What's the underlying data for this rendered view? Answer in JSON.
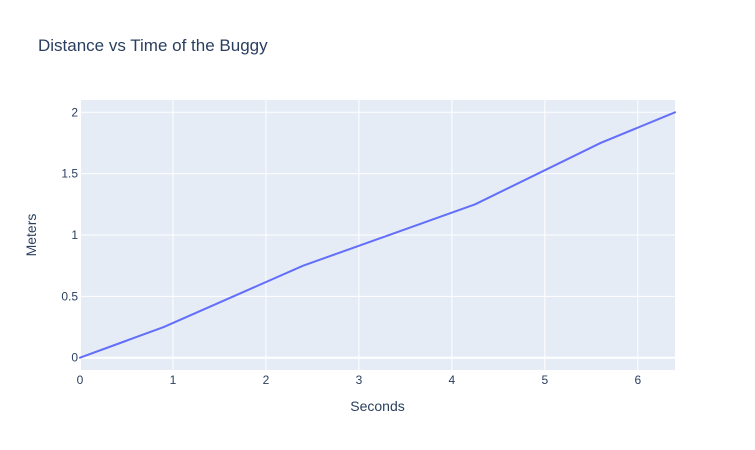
{
  "chart_data": {
    "type": "line",
    "title": "Distance vs Time of the Buggy",
    "xlabel": "Seconds",
    "ylabel": "Meters",
    "xlim": [
      0,
      6.4
    ],
    "ylim": [
      -0.1,
      2.1
    ],
    "xticks": [
      0,
      1,
      2,
      3,
      4,
      5,
      6
    ],
    "xtick_labels": [
      "0",
      "1",
      "2",
      "3",
      "4",
      "5",
      "6"
    ],
    "yticks": [
      0,
      0.5,
      1,
      1.5,
      2
    ],
    "ytick_labels": [
      "0",
      "0.5",
      "1",
      "1.5",
      "2"
    ],
    "grid": true,
    "legend": "none",
    "series": [
      {
        "color": "#636efa",
        "x": [
          0,
          0.9,
          2.4,
          4.25,
          5.6,
          6.4
        ],
        "y": [
          0,
          0.25,
          0.75,
          1.25,
          1.75,
          2.0
        ]
      }
    ],
    "colors": {
      "plot_bg": "#e5ecf6",
      "grid": "#ffffff",
      "text": "#2a3f5f",
      "page_bg": "#ffffff"
    }
  }
}
